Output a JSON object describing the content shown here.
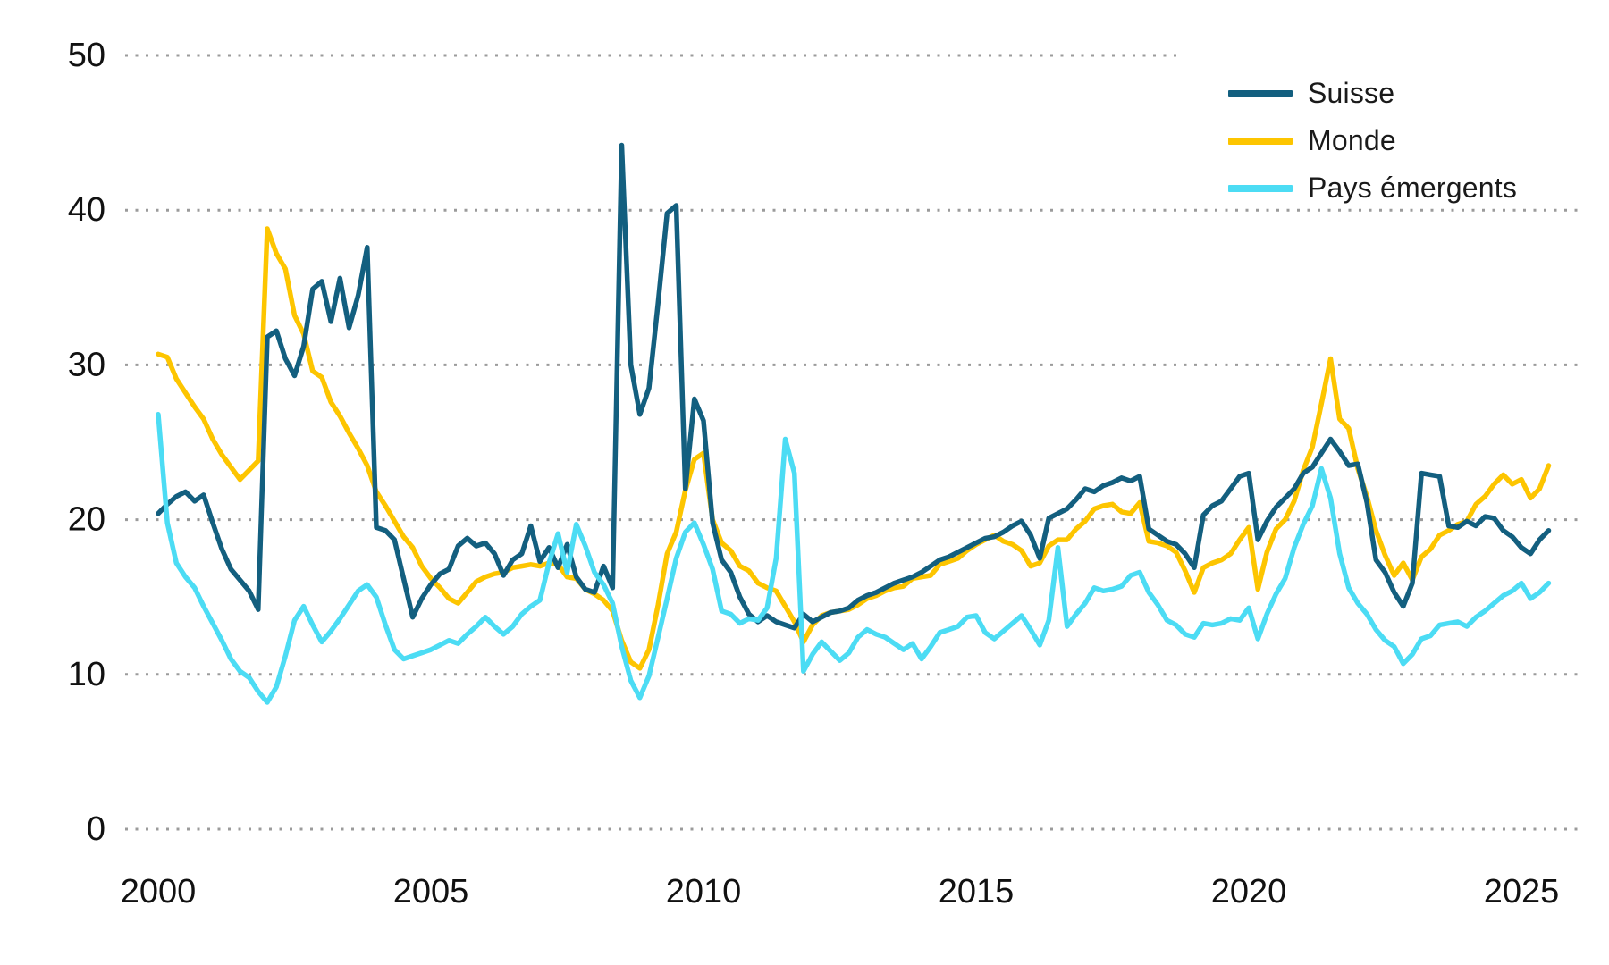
{
  "colors": {
    "suisse": "#135f7f",
    "monde": "#fdc500",
    "emergents": "#4cdcf4",
    "grid": "#9b9b9b",
    "tick_text": "#111111"
  },
  "legend": {
    "items": [
      "Suisse",
      "Monde",
      "Pays émergents"
    ]
  },
  "axes": {
    "y_labels": [
      "50",
      "40",
      "30",
      "20",
      "10",
      "0"
    ],
    "x_labels": [
      "2000",
      "2005",
      "2010",
      "2015",
      "2020",
      "2025"
    ]
  },
  "chart_data": {
    "type": "line",
    "title": "",
    "xlabel": "",
    "ylabel": "",
    "x_start": 2000.0,
    "x_end": 2025.5,
    "x_step": 0.1666667,
    "x_ticks": [
      2000,
      2005,
      2010,
      2015,
      2020,
      2025
    ],
    "y_ticks": [
      0,
      10,
      20,
      30,
      40,
      50
    ],
    "ylim": [
      0,
      50
    ],
    "grid": "horizontal-dotted",
    "legend_position": "top-right",
    "series": [
      {
        "name": "Suisse",
        "color": "#135f7f",
        "values": [
          20.4,
          21.0,
          21.5,
          21.8,
          21.2,
          21.6,
          19.8,
          18.1,
          16.8,
          16.1,
          15.4,
          14.2,
          31.8,
          32.2,
          30.4,
          29.3,
          31.2,
          34.9,
          35.4,
          32.8,
          35.6,
          32.4,
          34.5,
          37.6,
          19.5,
          19.3,
          18.7,
          16.2,
          13.7,
          14.9,
          15.8,
          16.5,
          16.8,
          18.3,
          18.8,
          18.3,
          18.5,
          17.8,
          16.4,
          17.4,
          17.8,
          19.6,
          17.3,
          18.2,
          16.9,
          18.4,
          16.3,
          15.5,
          15.3,
          17.0,
          15.6,
          44.2,
          30.0,
          26.8,
          28.5,
          34.0,
          39.8,
          40.3,
          22.0,
          27.8,
          26.4,
          19.8,
          17.4,
          16.6,
          15.0,
          13.9,
          13.4,
          13.8,
          13.4,
          13.2,
          13.0,
          13.9,
          13.4,
          13.7,
          14.0,
          14.1,
          14.3,
          14.8,
          15.1,
          15.3,
          15.6,
          15.9,
          16.1,
          16.3,
          16.6,
          17.0,
          17.4,
          17.6,
          17.9,
          18.2,
          18.5,
          18.8,
          18.9,
          19.2,
          19.6,
          19.9,
          19.0,
          17.5,
          20.1,
          20.4,
          20.7,
          21.3,
          22.0,
          21.8,
          22.2,
          22.4,
          22.7,
          22.5,
          22.8,
          19.4,
          19.0,
          18.6,
          18.4,
          17.8,
          16.9,
          20.3,
          20.9,
          21.2,
          22.0,
          22.8,
          23.0,
          18.7,
          19.9,
          20.8,
          21.4,
          22.0,
          23.0,
          23.4,
          24.3,
          25.2,
          24.4,
          23.5,
          23.6,
          21.1,
          17.4,
          16.6,
          15.3,
          14.4,
          15.9,
          23.0,
          22.9,
          22.8,
          19.6,
          19.5,
          19.9,
          19.6,
          20.2,
          20.1,
          19.3,
          18.9,
          18.2,
          17.8,
          18.7,
          19.3
        ]
      },
      {
        "name": "Monde",
        "color": "#fdc500",
        "values": [
          30.7,
          30.5,
          29.1,
          28.2,
          27.3,
          26.5,
          25.2,
          24.2,
          23.4,
          22.6,
          23.2,
          23.8,
          38.8,
          37.2,
          36.2,
          33.2,
          32.0,
          29.6,
          29.2,
          27.6,
          26.7,
          25.6,
          24.6,
          23.5,
          21.8,
          20.9,
          19.9,
          18.9,
          18.2,
          17.0,
          16.2,
          15.6,
          14.9,
          14.6,
          15.3,
          16.0,
          16.3,
          16.5,
          16.6,
          16.9,
          17.0,
          17.1,
          17.0,
          17.2,
          17.1,
          16.3,
          16.2,
          15.5,
          15.2,
          14.8,
          14.1,
          12.2,
          10.8,
          10.4,
          11.6,
          14.5,
          17.8,
          19.2,
          21.9,
          23.9,
          24.3,
          20.0,
          18.5,
          18.0,
          17.0,
          16.7,
          15.9,
          15.6,
          15.4,
          14.4,
          13.4,
          12.1,
          13.2,
          13.8,
          14.0,
          14.1,
          14.2,
          14.5,
          14.9,
          15.1,
          15.4,
          15.6,
          15.7,
          16.2,
          16.3,
          16.4,
          17.1,
          17.3,
          17.5,
          18.0,
          18.4,
          18.7,
          19.0,
          18.6,
          18.4,
          18.0,
          17.0,
          17.2,
          18.3,
          18.7,
          18.7,
          19.4,
          19.9,
          20.7,
          20.9,
          21.0,
          20.5,
          20.4,
          21.1,
          18.6,
          18.5,
          18.3,
          17.9,
          16.7,
          15.3,
          16.9,
          17.2,
          17.4,
          17.8,
          18.7,
          19.5,
          15.5,
          17.9,
          19.4,
          20.0,
          21.2,
          23.2,
          24.7,
          27.5,
          30.4,
          26.5,
          25.9,
          23.3,
          21.5,
          19.3,
          17.7,
          16.4,
          17.2,
          16.1,
          17.6,
          18.1,
          19.0,
          19.3,
          19.7,
          19.9,
          21.0,
          21.5,
          22.3,
          22.9,
          22.3,
          22.6,
          21.4,
          22.0,
          23.5
        ]
      },
      {
        "name": "Pays émergents",
        "color": "#4cdcf4",
        "values": [
          26.8,
          19.8,
          17.2,
          16.3,
          15.6,
          14.4,
          13.3,
          12.2,
          11.0,
          10.2,
          9.8,
          8.9,
          8.2,
          9.2,
          11.2,
          13.5,
          14.4,
          13.2,
          12.1,
          12.8,
          13.6,
          14.5,
          15.4,
          15.8,
          15.0,
          13.2,
          11.6,
          11.0,
          11.2,
          11.4,
          11.6,
          11.9,
          12.2,
          12.0,
          12.6,
          13.1,
          13.7,
          13.1,
          12.6,
          13.1,
          13.9,
          14.4,
          14.8,
          17.2,
          19.1,
          16.6,
          19.7,
          18.3,
          16.6,
          15.8,
          14.6,
          11.8,
          9.6,
          8.5,
          9.9,
          12.4,
          14.9,
          17.5,
          19.2,
          19.8,
          18.4,
          16.8,
          14.1,
          13.9,
          13.3,
          13.6,
          13.5,
          14.3,
          17.5,
          25.2,
          23.0,
          10.2,
          11.3,
          12.1,
          11.5,
          10.9,
          11.4,
          12.4,
          12.9,
          12.6,
          12.4,
          12.0,
          11.6,
          12.0,
          11.0,
          11.8,
          12.7,
          12.9,
          13.1,
          13.7,
          13.8,
          12.7,
          12.3,
          12.8,
          13.3,
          13.8,
          12.9,
          11.9,
          13.5,
          18.2,
          13.1,
          13.9,
          14.6,
          15.6,
          15.4,
          15.5,
          15.7,
          16.4,
          16.6,
          15.3,
          14.5,
          13.5,
          13.2,
          12.6,
          12.4,
          13.3,
          13.2,
          13.3,
          13.6,
          13.5,
          14.3,
          12.3,
          13.9,
          15.2,
          16.2,
          18.2,
          19.7,
          20.9,
          23.3,
          21.4,
          17.8,
          15.6,
          14.6,
          13.9,
          12.9,
          12.2,
          11.8,
          10.7,
          11.3,
          12.3,
          12.5,
          13.2,
          13.3,
          13.4,
          13.1,
          13.7,
          14.1,
          14.6,
          15.1,
          15.4,
          15.9,
          14.9,
          15.3,
          15.9
        ]
      }
    ]
  }
}
